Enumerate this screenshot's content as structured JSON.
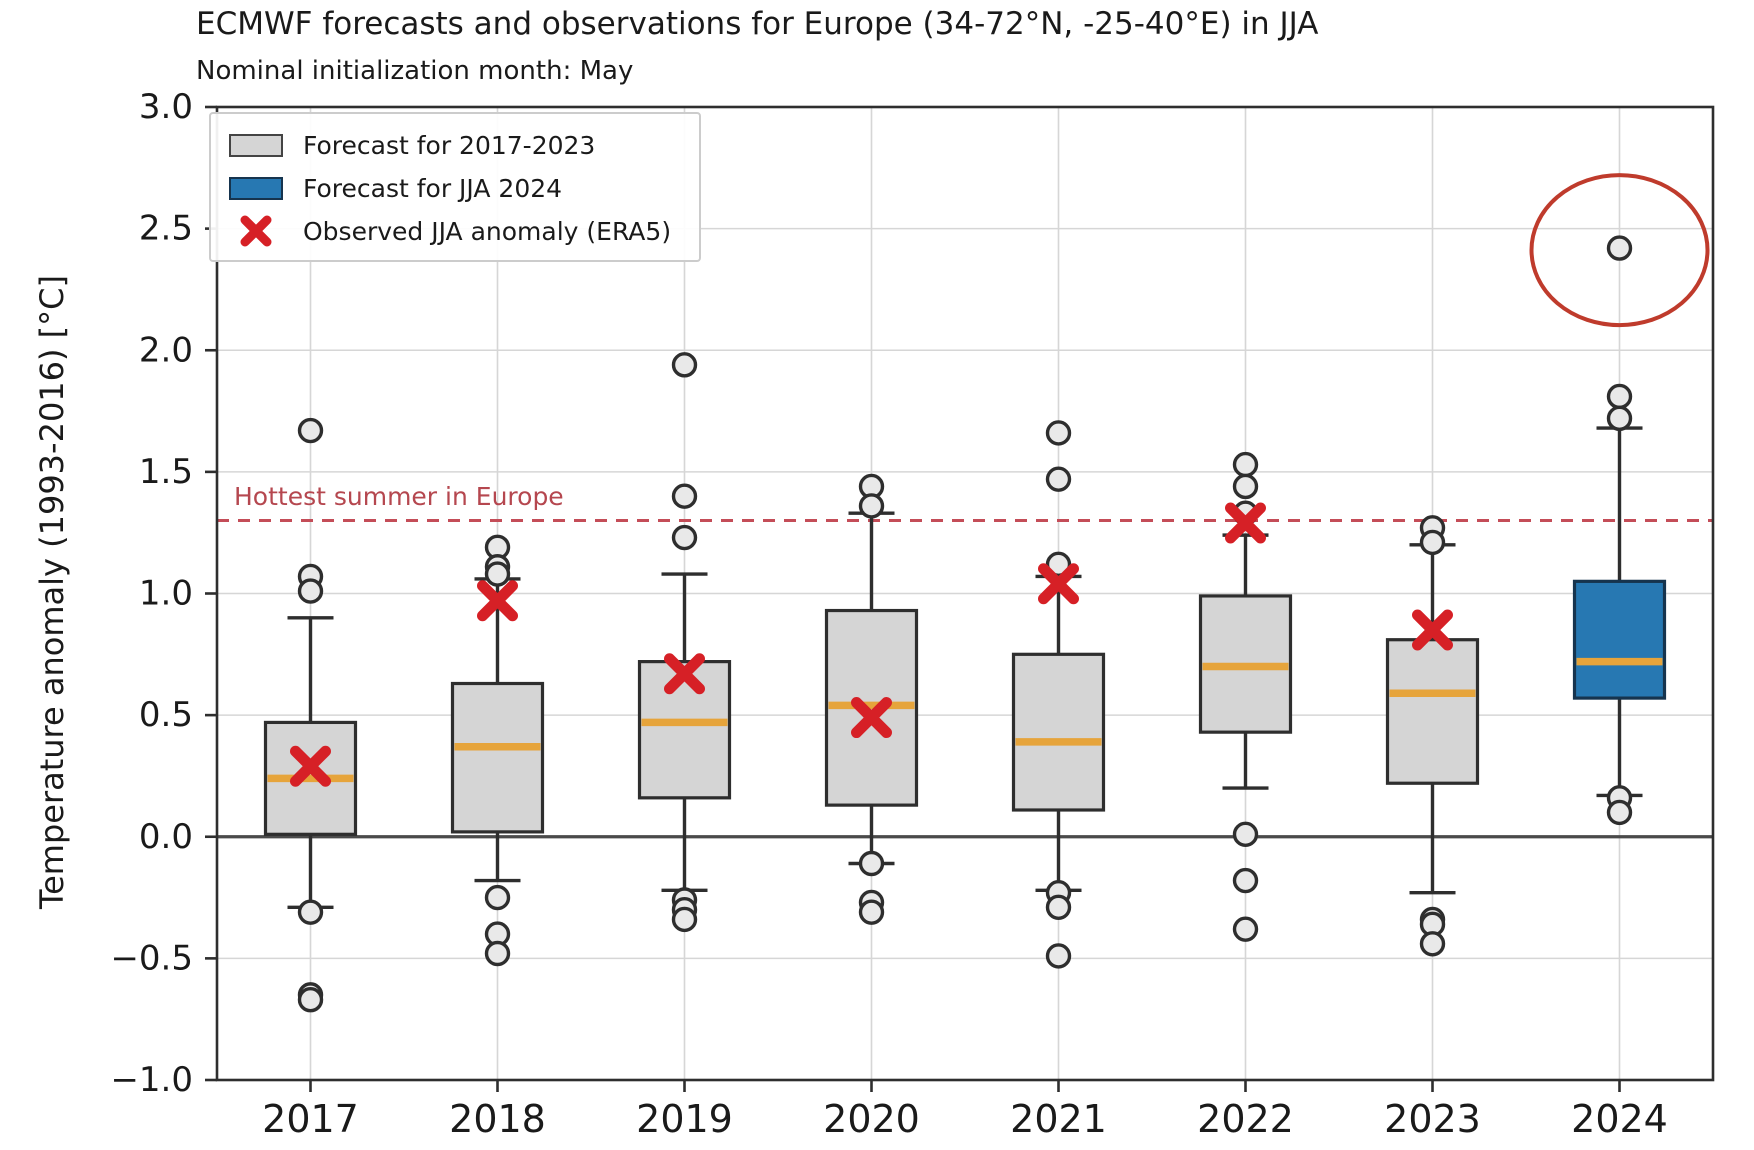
{
  "title": "ECMWF forecasts and observations for Europe (34-72°N, -25-40°E) in JJA",
  "subtitle": "Nominal initialization month: May",
  "legend": {
    "items": [
      {
        "marker": "gray-box-swatch",
        "label": "Forecast for 2017-2023"
      },
      {
        "marker": "blue-box-swatch",
        "label": "Forecast for JJA 2024"
      },
      {
        "marker": "red-x-marker",
        "label": "Observed JJA anomaly (ERA5)"
      }
    ]
  },
  "colors": {
    "gray_box_fill": "#d5d5d5",
    "gray_box_edge": "#2e2e2e",
    "blue_box_fill": "#2778b2",
    "blue_box_edge": "#16344e",
    "median": "#e6a43b",
    "observed_x": "#d62026",
    "ref_line": "#c44d58",
    "ref_text": "#b5474f",
    "annotation_circle": "#bf3b2c",
    "grid": "#d6d6d6",
    "spine": "#2e2e2e",
    "zero_line": "#4a4a4a",
    "flier_fill": "#e9e9e9",
    "flier_edge": "#2e2e2e",
    "whisker": "#2e2e2e"
  },
  "chart_data": {
    "type": "box",
    "title": "ECMWF forecasts and observations for Europe (34-72°N, -25-40°E) in JJA",
    "subtitle": "Nominal initialization month: May",
    "ylabel": "Temperature anomaly (1993-2016) [°C]",
    "categories": [
      "2017",
      "2018",
      "2019",
      "2020",
      "2021",
      "2022",
      "2023",
      "2024"
    ],
    "ylim": [
      -1.0,
      3.0
    ],
    "yticks": {
      "values": [
        3.0,
        2.5,
        2.0,
        1.5,
        1.0,
        0.5,
        0.0,
        -0.5,
        -1.0
      ],
      "labels": [
        "3.0",
        "2.5",
        "2.0",
        "1.5",
        "1.0",
        "0.5",
        "0.0",
        "−0.5",
        "−1.0"
      ]
    },
    "grid": true,
    "zero_line": 0.0,
    "reference_line": {
      "value": 1.3,
      "label": "Hottest summer in Europe"
    },
    "boxes": [
      {
        "year": "2017",
        "color": "gray",
        "whislo": -0.29,
        "q1": 0.01,
        "median": 0.24,
        "q3": 0.47,
        "whishi": 0.9,
        "fliers": [
          1.67,
          1.07,
          1.01,
          -0.31,
          -0.65,
          -0.67
        ],
        "observed": 0.29
      },
      {
        "year": "2018",
        "color": "gray",
        "whislo": -0.18,
        "q1": 0.02,
        "median": 0.37,
        "q3": 0.63,
        "whishi": 1.06,
        "fliers": [
          1.19,
          1.11,
          1.08,
          -0.25,
          -0.4,
          -0.48
        ],
        "observed": 0.97
      },
      {
        "year": "2019",
        "color": "gray",
        "whislo": -0.22,
        "q1": 0.16,
        "median": 0.47,
        "q3": 0.72,
        "whishi": 1.08,
        "fliers": [
          1.94,
          1.4,
          1.23,
          -0.26,
          -0.3,
          -0.34
        ],
        "observed": 0.67
      },
      {
        "year": "2020",
        "color": "gray",
        "whislo": -0.11,
        "q1": 0.13,
        "median": 0.54,
        "q3": 0.93,
        "whishi": 1.33,
        "fliers": [
          1.44,
          1.36,
          -0.11,
          -0.27,
          -0.31
        ],
        "observed": 0.49
      },
      {
        "year": "2021",
        "color": "gray",
        "whislo": -0.22,
        "q1": 0.11,
        "median": 0.39,
        "q3": 0.75,
        "whishi": 1.07,
        "fliers": [
          1.66,
          1.47,
          1.12,
          -0.23,
          -0.29,
          -0.49
        ],
        "observed": 1.04
      },
      {
        "year": "2022",
        "color": "gray",
        "whislo": 0.2,
        "q1": 0.43,
        "median": 0.7,
        "q3": 0.99,
        "whishi": 1.24,
        "fliers": [
          1.53,
          1.44,
          1.33,
          0.01,
          -0.18,
          -0.38
        ],
        "observed": 1.29
      },
      {
        "year": "2023",
        "color": "gray",
        "whislo": -0.23,
        "q1": 0.22,
        "median": 0.59,
        "q3": 0.81,
        "whishi": 1.2,
        "fliers": [
          1.27,
          1.21,
          -0.34,
          -0.36,
          -0.44
        ],
        "observed": 0.85
      },
      {
        "year": "2024",
        "color": "blue",
        "whislo": 0.17,
        "q1": 0.57,
        "median": 0.72,
        "q3": 1.05,
        "whishi": 1.68,
        "fliers": [
          2.42,
          1.81,
          1.72,
          0.16,
          0.1
        ],
        "observed": null
      }
    ],
    "annotation_circle": {
      "year": "2024",
      "value": 2.42
    },
    "legend_position": "upper-left"
  }
}
